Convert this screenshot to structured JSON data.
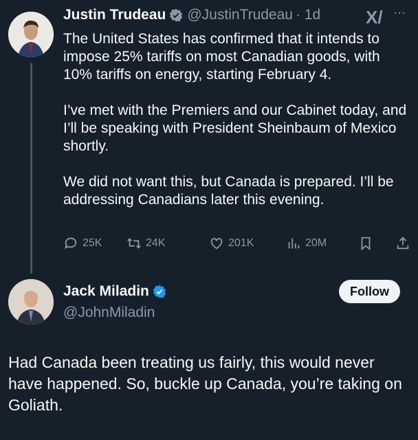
{
  "tweet": {
    "name": "Justin Trudeau",
    "handle": "@JustinTrudeau",
    "time": "· 1d",
    "verified_color": "#829aab",
    "text": "The United States has confirmed that it intends to impose 25% tariffs on most Canadian goods, with 10% tariffs on energy, starting February 4.\n\nI’ve met with the Premiers and our Cabinet today, and I’ll be speaking with President Sheinbaum of Mexico shortly.\n\nWe did not want this, but Canada is prepared. I’ll be addressing Canadians later this evening.",
    "replies": "25K",
    "reposts": "24K",
    "likes": "201K",
    "views": "20M",
    "more": "···"
  },
  "reply": {
    "name": "Jack Miladin",
    "handle": "@JohnMiladin",
    "verified_color": "#1d9bf0",
    "follow_label": "Follow",
    "text": "Had Canada been treating us fairly, this would never have happened. So, buckle up Canada, you’re taking on Goliath."
  }
}
